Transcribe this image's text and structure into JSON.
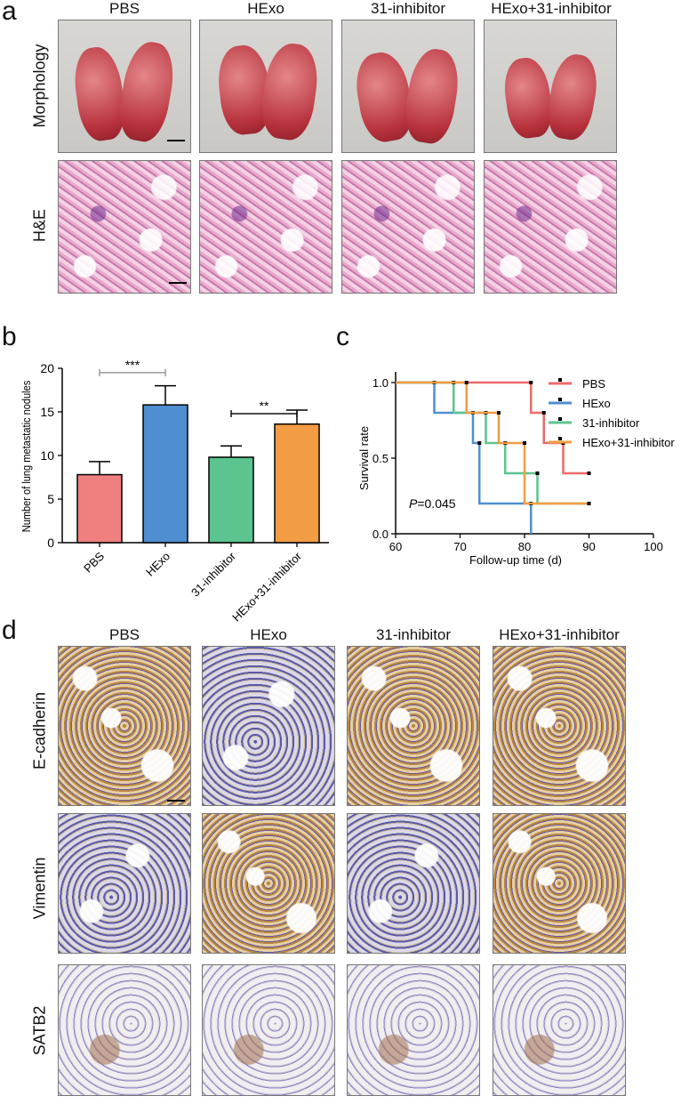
{
  "panels": {
    "a": "a",
    "b": "b",
    "c": "c",
    "d": "d"
  },
  "panel_a": {
    "columns": [
      "PBS",
      "HExo",
      "31-inhibitor",
      "HExo+31-inhibitor"
    ],
    "rows": [
      "Morphology",
      "H&E"
    ]
  },
  "panel_d": {
    "columns": [
      "PBS",
      "HExo",
      "31-inhibitor",
      "HExo+31-inhibitor"
    ],
    "rows": [
      "E-cadherin",
      "Vimentin",
      "SATB2"
    ]
  },
  "chart_data": [
    {
      "type": "bar",
      "panel": "b",
      "categories": [
        "PBS",
        "HExo",
        "31-inhibitor",
        "HExo+31-inhibitor"
      ],
      "values": [
        7.8,
        15.8,
        9.8,
        13.6
      ],
      "errors": [
        1.5,
        2.2,
        1.3,
        1.6
      ],
      "colors": [
        "#f08080",
        "#4f8fd1",
        "#5cc48e",
        "#f29c43"
      ],
      "ylabel": "Number of lung metastatic nodules",
      "ylim": [
        0,
        20
      ],
      "yticks": [
        0,
        5,
        10,
        15,
        20
      ],
      "significance": [
        {
          "from": 0,
          "to": 1,
          "label": "***",
          "y": 19.5,
          "color": "#9a9a9a"
        },
        {
          "from": 2,
          "to": 3,
          "label": "**",
          "y": 14.8,
          "color": "#111111"
        }
      ]
    },
    {
      "type": "line",
      "subtype": "kaplan-meier",
      "panel": "c",
      "xlabel": "Follow-up time (d)",
      "ylabel": "Survival rate",
      "xlim": [
        60,
        100
      ],
      "ylim": [
        0,
        1
      ],
      "xticks": [
        60,
        70,
        80,
        90,
        100
      ],
      "yticks": [
        0.0,
        0.5,
        1.0
      ],
      "ytick_labels": [
        "0.0",
        "0.5",
        "1.0"
      ],
      "annotation": {
        "italic": "P",
        "text": "=0.045"
      },
      "legend_position": "top-right",
      "series": [
        {
          "name": "PBS",
          "color": "#ec6a6a",
          "steps": [
            [
              60,
              1.0
            ],
            [
              81,
              0.8
            ],
            [
              83,
              0.6
            ],
            [
              86,
              0.4
            ],
            [
              90,
              0.4
            ]
          ]
        },
        {
          "name": "HExo",
          "color": "#4f8fd1",
          "steps": [
            [
              60,
              1.0
            ],
            [
              66,
              0.8
            ],
            [
              72,
              0.6
            ],
            [
              73,
              0.2
            ],
            [
              81,
              0.0
            ]
          ]
        },
        {
          "name": "31-inhibitor",
          "color": "#5cc48e",
          "steps": [
            [
              60,
              1.0
            ],
            [
              69,
              0.8
            ],
            [
              74,
              0.6
            ],
            [
              77,
              0.4
            ],
            [
              82,
              0.2
            ],
            [
              90,
              0.2
            ]
          ]
        },
        {
          "name": "HExo+31-inhibitor",
          "color": "#f29c43",
          "steps": [
            [
              60,
              1.0
            ],
            [
              71,
              0.8
            ],
            [
              76,
              0.6
            ],
            [
              80,
              0.2
            ],
            [
              90,
              0.2
            ]
          ]
        }
      ]
    }
  ]
}
